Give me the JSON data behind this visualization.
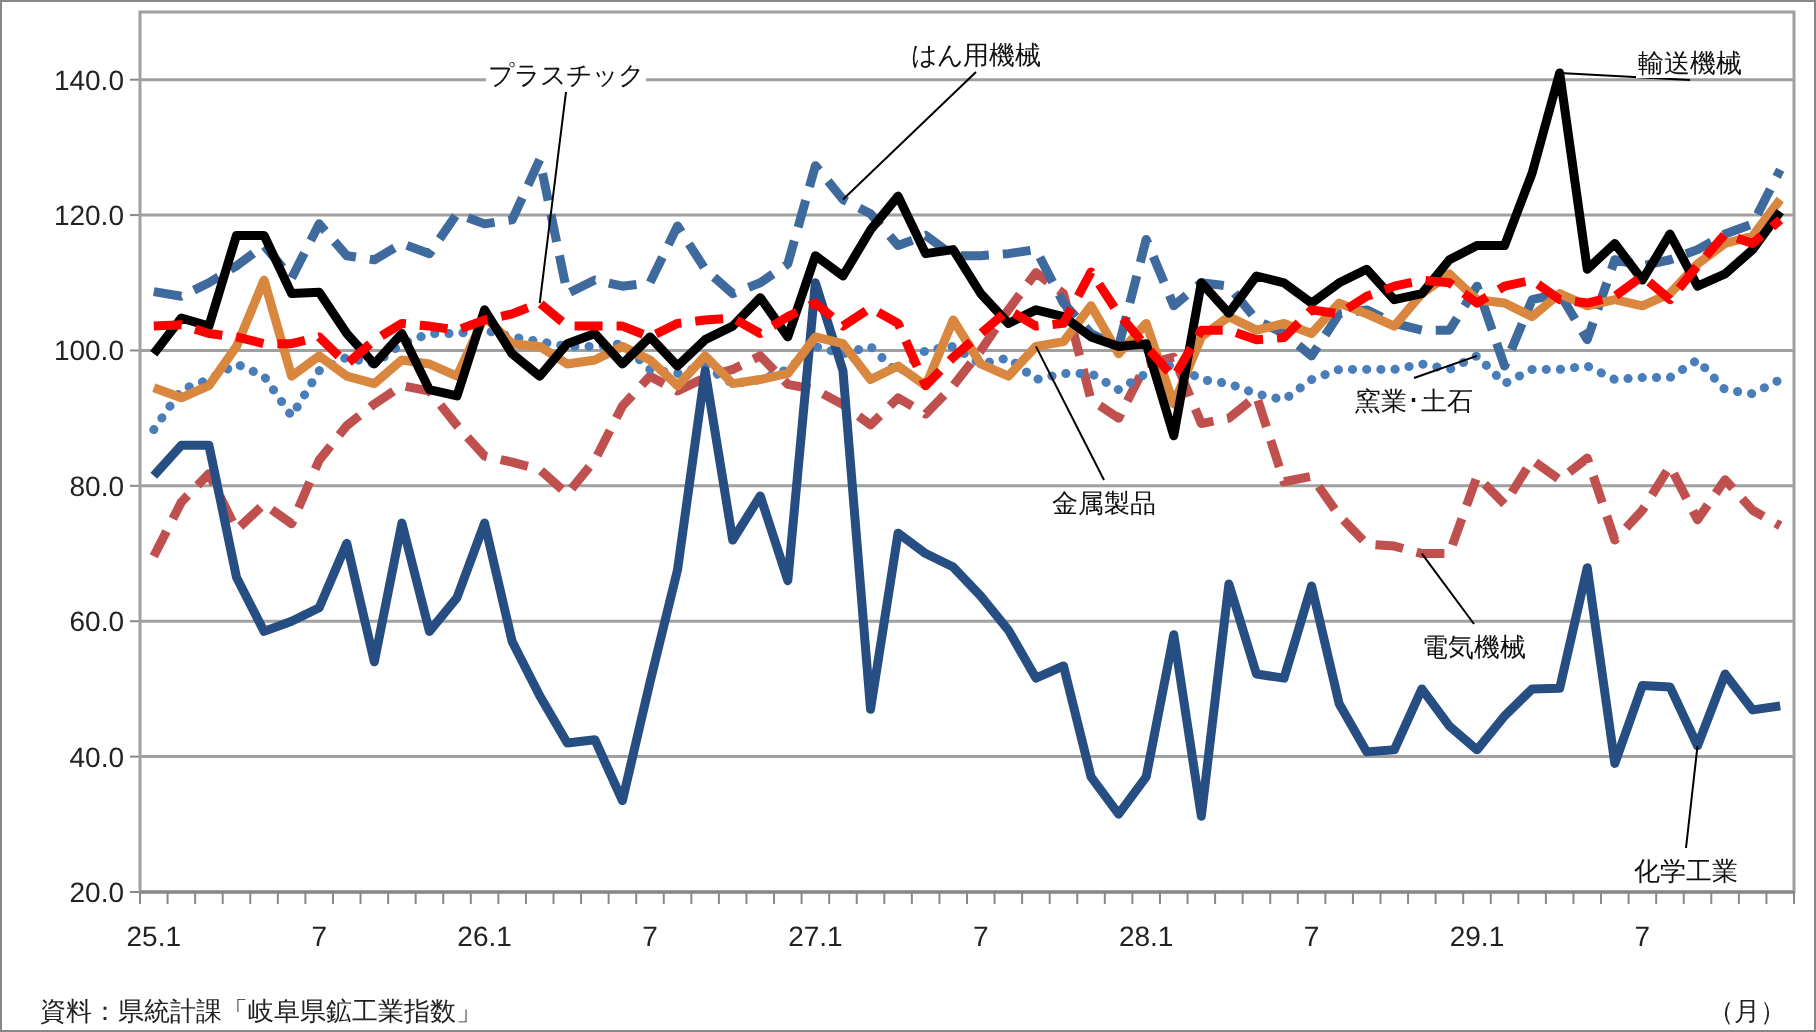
{
  "chart_data": {
    "type": "line",
    "categories": [
      "25.1",
      null,
      null,
      null,
      null,
      null,
      "7",
      null,
      null,
      null,
      null,
      null,
      "26.1",
      null,
      null,
      null,
      null,
      null,
      "7",
      null,
      null,
      null,
      null,
      null,
      "27.1",
      null,
      null,
      null,
      null,
      null,
      "7",
      null,
      null,
      null,
      null,
      null,
      "28.1",
      null,
      null,
      null,
      null,
      null,
      "7",
      null,
      null,
      null,
      null,
      null,
      "29.1",
      null,
      null,
      null,
      null,
      null,
      "7",
      null,
      null,
      null,
      null,
      null
    ],
    "xlabel": "（月）",
    "ylim": [
      20,
      150
    ],
    "yticks": [
      {
        "value": 20,
        "label": "20.0"
      },
      {
        "value": 40,
        "label": "40.0"
      },
      {
        "value": 60,
        "label": "60.0"
      },
      {
        "value": 80,
        "label": "80.0"
      },
      {
        "value": 100,
        "label": "100.0"
      },
      {
        "value": 120,
        "label": "120.0"
      },
      {
        "value": 140,
        "label": "140.0"
      }
    ],
    "grid": "y",
    "marker": "none",
    "series": [
      {
        "name": "電気機械",
        "color": "#c0504d",
        "line_style": "dashed",
        "values": [
          69.6,
          77.6,
          81.8,
          73.5,
          77.3,
          74.4,
          83.8,
          88.9,
          92.1,
          94.8,
          94,
          88.9,
          84.4,
          83.5,
          82.4,
          78.8,
          83.8,
          91.8,
          96.2,
          94,
          96,
          97.2,
          99.2,
          95,
          94.2,
          92,
          89,
          93,
          90.6,
          94.8,
          100,
          106,
          111.5,
          108.4,
          92.7,
          90,
          98,
          99,
          89.2,
          90,
          93.3,
          80.6,
          81.4,
          75.6,
          71.4,
          71.1,
          70,
          70,
          81.4,
          77.3,
          83.8,
          80.9,
          84.1,
          72,
          76.4,
          82.9,
          75,
          80.9,
          76.4,
          74.1
        ]
      },
      {
        "name": "窯業･土石",
        "color": "#4a7ebb",
        "line_style": "dotted",
        "values": [
          88.3,
          94.2,
          95.7,
          98,
          96.2,
          90.3,
          97,
          99,
          98,
          101,
          102.5,
          102.5,
          103,
          102,
          101.3,
          100.6,
          100.6,
          101,
          97.2,
          96.6,
          97.7,
          95.1,
          95.7,
          97.2,
          100.6,
          99.5,
          100.6,
          96.6,
          100,
          100.6,
          98,
          98.9,
          95.7,
          96.6,
          96.6,
          94.2,
          96.6,
          98,
          95.7,
          95.1,
          93.6,
          92.7,
          95.7,
          97.2,
          97.2,
          97.2,
          98,
          97.2,
          99.2,
          95.1,
          97.2,
          97.2,
          97.7,
          95.7,
          96,
          96,
          98.6,
          94.2,
          93.6,
          95.7
        ]
      },
      {
        "name": "化学工業",
        "color": "#264e82",
        "line_style": "solid",
        "values": [
          81.5,
          86,
          86,
          66.5,
          58.5,
          60,
          62,
          71.5,
          54,
          74.5,
          58.5,
          63.5,
          74.5,
          57,
          49,
          42,
          42.5,
          33.5,
          51,
          67.6,
          97,
          72,
          78.5,
          66,
          110,
          97,
          47,
          73,
          70,
          68,
          63.7,
          58.7,
          51.6,
          53.4,
          37,
          31.5,
          37,
          58,
          31.2,
          65.5,
          52.2,
          51.6,
          65.2,
          47.8,
          40.7,
          41,
          50,
          44.5,
          41,
          46,
          50,
          50.1,
          67.9,
          39,
          50.5,
          50.3,
          41.6,
          52.2,
          46.9,
          47.5
        ]
      },
      {
        "name": "はん用機械",
        "color": "#3e6a9e",
        "line_style": "dashed",
        "values": [
          108.7,
          108,
          110,
          112.5,
          115.5,
          110.7,
          118.7,
          114,
          113.4,
          115.8,
          114.3,
          120.2,
          118.7,
          119.3,
          128.2,
          108.4,
          110.4,
          109.5,
          110,
          118.4,
          112,
          108.4,
          110,
          112.8,
          127.3,
          122.3,
          120.2,
          115.5,
          117,
          114,
          114,
          114.3,
          114.9,
          107,
          102.5,
          100.6,
          116.4,
          106.6,
          110,
          109.5,
          104.5,
          102.5,
          99.2,
          105.4,
          106,
          104,
          103,
          103,
          109.5,
          97.7,
          107.5,
          108.4,
          101.6,
          113.4,
          112.5,
          113.4,
          114.9,
          117.2,
          118.7,
          126.7
        ]
      },
      {
        "name": "金属製品",
        "color": "#d9873f",
        "line_style": "solid",
        "values": [
          94.5,
          93,
          94.8,
          100.6,
          110.4,
          96.2,
          99.2,
          96.2,
          95.1,
          98.6,
          98,
          96.2,
          105,
          101,
          100.6,
          98,
          98.6,
          100.6,
          98.6,
          94.8,
          99.2,
          95.1,
          95.7,
          96.6,
          102,
          101,
          95.7,
          97.7,
          94.8,
          104.5,
          98,
          96.2,
          100.6,
          101.3,
          106.6,
          99.5,
          104,
          92.1,
          102,
          105,
          103,
          104,
          102.5,
          107,
          105.4,
          103.6,
          108.4,
          111.3,
          107.5,
          107,
          105,
          108.4,
          106.6,
          107.5,
          106.6,
          108.4,
          112.8,
          115.8,
          116.9,
          122.3
        ]
      },
      {
        "name": "輸送機械",
        "color": "#000000",
        "line_style": "solid",
        "values": [
          99.5,
          104.8,
          103.6,
          117,
          117,
          108.4,
          108.6,
          102.5,
          98,
          102.5,
          94.2,
          93.3,
          106,
          99.5,
          96.2,
          101,
          102.5,
          98,
          102,
          97.7,
          101.6,
          103.6,
          107.8,
          102,
          114,
          111,
          117.8,
          122.8,
          114.3,
          114.9,
          108.4,
          104,
          106,
          105,
          102,
          100.6,
          101,
          87.4,
          110,
          105.5,
          111,
          110,
          107,
          110,
          112,
          107.5,
          108.4,
          113.4,
          115.5,
          115.5,
          126.2,
          141,
          112,
          115.8,
          110.4,
          117.2,
          109.5,
          111.3,
          114.9,
          120.5
        ]
      },
      {
        "name": "プラスチック",
        "color": "#ff0000",
        "line_style": "dashed",
        "values": [
          103.6,
          103.8,
          102.5,
          102,
          101,
          101,
          102,
          98,
          101.5,
          104,
          103.6,
          103,
          104.5,
          105.4,
          107,
          103.6,
          103.6,
          103.6,
          102,
          104,
          104.5,
          104.8,
          102.5,
          105,
          107,
          103.6,
          106.3,
          104,
          94.8,
          99,
          102.5,
          106,
          103.6,
          104,
          111.6,
          105.4,
          100.6,
          96,
          103,
          103,
          101.6,
          101.9,
          106,
          105.4,
          108,
          109.5,
          110.4,
          110,
          107,
          109.5,
          110.4,
          107.5,
          107,
          108,
          111,
          107.5,
          112.5,
          117.2,
          115.8,
          119.3
        ]
      }
    ],
    "annotations": [
      "資料：県統計課「岐阜県鉱工業指数」"
    ]
  }
}
